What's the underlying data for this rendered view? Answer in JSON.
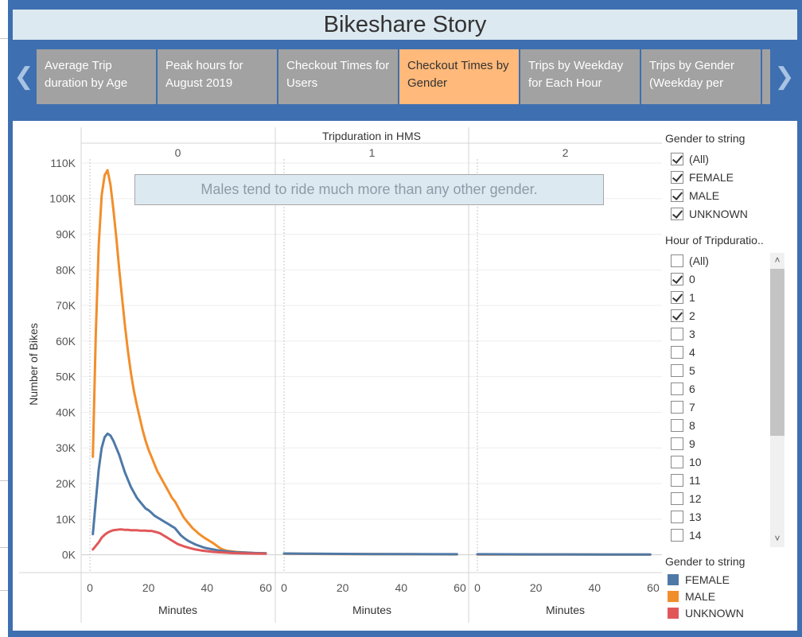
{
  "story": {
    "title": "Bikeshare Story"
  },
  "tabs": [
    {
      "label": "Average Trip duration by Age",
      "active": false
    },
    {
      "label": "Peak hours for August 2019",
      "active": false
    },
    {
      "label": "Checkout Times for Users",
      "active": false
    },
    {
      "label": "Checkout Times by Gender",
      "active": true
    },
    {
      "label": "Trips by Weekday for Each Hour",
      "active": false
    },
    {
      "label": "Trips by Gender (Weekday per",
      "active": false
    }
  ],
  "nav": {
    "prev_icon": "chevron-left-icon",
    "next_icon": "chevron-right-icon"
  },
  "annotation": "Males tend to ride much more than any other gender.",
  "filters": {
    "gender": {
      "title": "Gender to string",
      "items": [
        {
          "label": "(All)",
          "checked": true
        },
        {
          "label": "FEMALE",
          "checked": true
        },
        {
          "label": "MALE",
          "checked": true
        },
        {
          "label": "UNKNOWN",
          "checked": true
        }
      ]
    },
    "hour": {
      "title": "Hour of Tripduratio..",
      "items": [
        {
          "label": "(All)",
          "checked": false
        },
        {
          "label": "0",
          "checked": true
        },
        {
          "label": "1",
          "checked": true
        },
        {
          "label": "2",
          "checked": true
        },
        {
          "label": "3",
          "checked": false
        },
        {
          "label": "4",
          "checked": false
        },
        {
          "label": "5",
          "checked": false
        },
        {
          "label": "6",
          "checked": false
        },
        {
          "label": "7",
          "checked": false
        },
        {
          "label": "8",
          "checked": false
        },
        {
          "label": "9",
          "checked": false
        },
        {
          "label": "10",
          "checked": false
        },
        {
          "label": "11",
          "checked": false
        },
        {
          "label": "12",
          "checked": false
        },
        {
          "label": "13",
          "checked": false
        },
        {
          "label": "14",
          "checked": false
        }
      ]
    }
  },
  "legend": {
    "title": "Gender to string",
    "items": [
      {
        "label": "FEMALE",
        "color": "#4e79a7"
      },
      {
        "label": "MALE",
        "color": "#f28e2b"
      },
      {
        "label": "UNKNOWN",
        "color": "#e15759"
      }
    ]
  },
  "chart_data": {
    "type": "line",
    "column_header": "Tripduration in HMS",
    "panels": [
      "0",
      "1",
      "2"
    ],
    "xlabel": "Minutes",
    "ylabel": "Number of Bikes",
    "xlim": [
      -3,
      63
    ],
    "ylim": [
      -5000,
      112000
    ],
    "xticks": [
      0,
      20,
      40,
      60
    ],
    "yticks": [
      0,
      10000,
      20000,
      30000,
      40000,
      50000,
      60000,
      70000,
      80000,
      90000,
      100000,
      110000
    ],
    "ytick_labels": [
      "0K",
      "10K",
      "20K",
      "30K",
      "40K",
      "50K",
      "60K",
      "70K",
      "80K",
      "90K",
      "100K",
      "110K"
    ],
    "series": [
      {
        "name": "MALE",
        "color": "#f28e2b",
        "panel_points": [
          [
            [
              1,
              27500
            ],
            [
              2,
              62000
            ],
            [
              3,
              87000
            ],
            [
              4,
              101000
            ],
            [
              5,
              106500
            ],
            [
              6,
              108000
            ],
            [
              7,
              104000
            ],
            [
              8,
              97000
            ],
            [
              9,
              89000
            ],
            [
              10,
              80000
            ],
            [
              11,
              72000
            ],
            [
              12,
              64000
            ],
            [
              13,
              57000
            ],
            [
              14,
              51000
            ],
            [
              15,
              46000
            ],
            [
              16,
              42000
            ],
            [
              17,
              38500
            ],
            [
              18,
              35000
            ],
            [
              19,
              32000
            ],
            [
              20,
              29500
            ],
            [
              21,
              27500
            ],
            [
              22,
              25500
            ],
            [
              23,
              23500
            ],
            [
              24,
              22000
            ],
            [
              25,
              20500
            ],
            [
              26,
              19000
            ],
            [
              27,
              17500
            ],
            [
              28,
              16000
            ],
            [
              29,
              15000
            ],
            [
              30,
              13500
            ],
            [
              31,
              12000
            ],
            [
              32,
              10500
            ],
            [
              33,
              9500
            ],
            [
              34,
              8500
            ],
            [
              35,
              7500
            ],
            [
              36,
              6800
            ],
            [
              37,
              6000
            ],
            [
              38,
              5400
            ],
            [
              39,
              4800
            ],
            [
              40,
              4300
            ],
            [
              41,
              3800
            ],
            [
              42,
              3300
            ],
            [
              43,
              2700
            ],
            [
              44,
              2100
            ],
            [
              45,
              1600
            ],
            [
              46,
              1300
            ],
            [
              47,
              1100
            ],
            [
              48,
              1000
            ],
            [
              49,
              900
            ],
            [
              50,
              800
            ],
            [
              52,
              700
            ],
            [
              54,
              600
            ],
            [
              56,
              500
            ],
            [
              58,
              450
            ],
            [
              60,
              400
            ]
          ],
          [
            [
              0,
              300
            ],
            [
              10,
              250
            ],
            [
              20,
              200
            ],
            [
              30,
              170
            ],
            [
              40,
              150
            ],
            [
              50,
              130
            ],
            [
              59,
              120
            ]
          ],
          [
            [
              0,
              100
            ],
            [
              10,
              90
            ],
            [
              20,
              80
            ],
            [
              30,
              70
            ],
            [
              40,
              60
            ],
            [
              50,
              50
            ],
            [
              59,
              40
            ]
          ]
        ]
      },
      {
        "name": "FEMALE",
        "color": "#4e79a7",
        "panel_points": [
          [
            [
              1,
              5800
            ],
            [
              2,
              15000
            ],
            [
              3,
              24000
            ],
            [
              4,
              30000
            ],
            [
              5,
              33000
            ],
            [
              6,
              34000
            ],
            [
              7,
              33500
            ],
            [
              8,
              32000
            ],
            [
              9,
              30000
            ],
            [
              10,
              28000
            ],
            [
              11,
              25500
            ],
            [
              12,
              23000
            ],
            [
              13,
              21000
            ],
            [
              14,
              19000
            ],
            [
              15,
              17500
            ],
            [
              16,
              16000
            ],
            [
              17,
              15000
            ],
            [
              18,
              14000
            ],
            [
              19,
              13000
            ],
            [
              20,
              12500
            ],
            [
              21,
              11800
            ],
            [
              22,
              11000
            ],
            [
              23,
              10500
            ],
            [
              24,
              10000
            ],
            [
              25,
              9500
            ],
            [
              26,
              9000
            ],
            [
              27,
              8500
            ],
            [
              28,
              8000
            ],
            [
              29,
              7500
            ],
            [
              30,
              6500
            ],
            [
              31,
              5500
            ],
            [
              32,
              4800
            ],
            [
              33,
              4200
            ],
            [
              34,
              3700
            ],
            [
              35,
              3300
            ],
            [
              36,
              2900
            ],
            [
              37,
              2600
            ],
            [
              38,
              2300
            ],
            [
              39,
              2000
            ],
            [
              40,
              1800
            ],
            [
              42,
              1500
            ],
            [
              44,
              1200
            ],
            [
              46,
              1000
            ],
            [
              48,
              800
            ],
            [
              50,
              700
            ],
            [
              53,
              600
            ],
            [
              56,
              500
            ],
            [
              60,
              400
            ]
          ],
          [
            [
              0,
              350
            ],
            [
              10,
              300
            ],
            [
              20,
              250
            ],
            [
              30,
              200
            ],
            [
              40,
              180
            ],
            [
              50,
              160
            ],
            [
              59,
              150
            ]
          ],
          [
            [
              0,
              150
            ],
            [
              10,
              130
            ],
            [
              20,
              120
            ],
            [
              30,
              110
            ],
            [
              40,
              100
            ],
            [
              50,
              90
            ],
            [
              59,
              80
            ]
          ]
        ]
      },
      {
        "name": "UNKNOWN",
        "color": "#e15759",
        "panel_points": [
          [
            [
              1,
              1500
            ],
            [
              2,
              2500
            ],
            [
              3,
              3500
            ],
            [
              4,
              4800
            ],
            [
              5,
              5600
            ],
            [
              6,
              6200
            ],
            [
              7,
              6600
            ],
            [
              8,
              6900
            ],
            [
              9,
              7000
            ],
            [
              10,
              7100
            ],
            [
              11,
              7100
            ],
            [
              12,
              7000
            ],
            [
              13,
              7000
            ],
            [
              14,
              6900
            ],
            [
              15,
              6900
            ],
            [
              16,
              6900
            ],
            [
              17,
              6800
            ],
            [
              18,
              6800
            ],
            [
              19,
              6800
            ],
            [
              20,
              6700
            ],
            [
              21,
              6700
            ],
            [
              22,
              6500
            ],
            [
              23,
              6300
            ],
            [
              24,
              6000
            ],
            [
              25,
              5500
            ],
            [
              26,
              5000
            ],
            [
              27,
              4500
            ],
            [
              28,
              4000
            ],
            [
              29,
              3500
            ],
            [
              30,
              3000
            ],
            [
              32,
              2400
            ],
            [
              34,
              1900
            ],
            [
              36,
              1500
            ],
            [
              38,
              1200
            ],
            [
              40,
              1000
            ],
            [
              42,
              800
            ],
            [
              44,
              700
            ],
            [
              46,
              600
            ],
            [
              48,
              500
            ],
            [
              50,
              450
            ],
            [
              55,
              350
            ],
            [
              60,
              300
            ]
          ],
          [],
          []
        ]
      }
    ]
  }
}
